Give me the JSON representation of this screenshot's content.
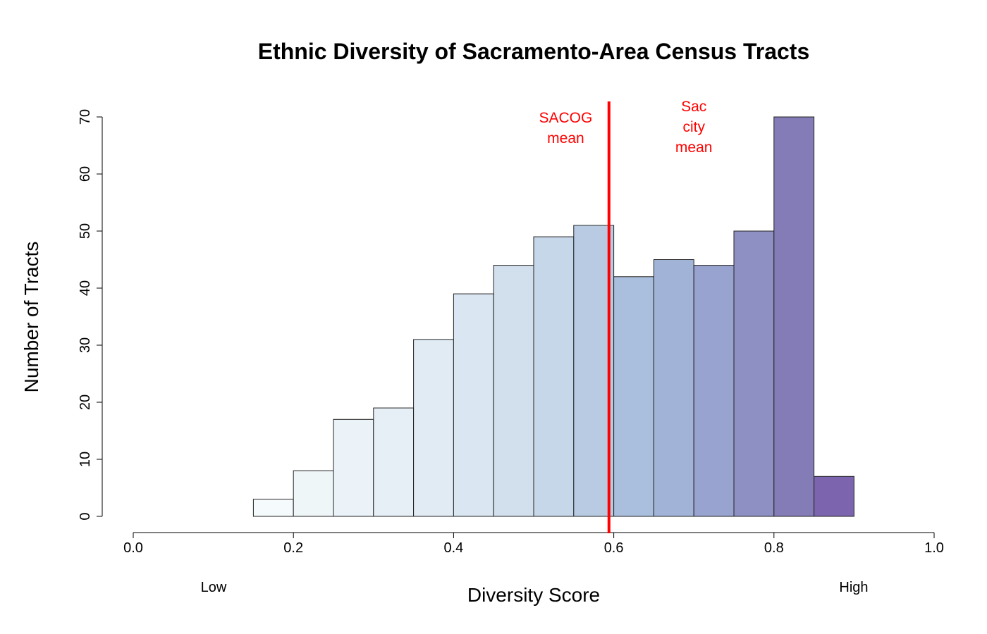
{
  "chart_data": {
    "type": "bar",
    "title": "Ethnic Diversity of Sacramento-Area Census Tracts",
    "xlabel": "Diversity Score",
    "ylabel": "Number of Tracts",
    "xlim": [
      0,
      1
    ],
    "ylim": [
      0,
      70
    ],
    "x_ticks": [
      "0.0",
      "0.2",
      "0.4",
      "0.6",
      "0.8",
      "1.0"
    ],
    "y_ticks": [
      "0",
      "10",
      "20",
      "30",
      "40",
      "50",
      "60",
      "70"
    ],
    "x_end_labels": {
      "low": "Low",
      "high": "High"
    },
    "bins": [
      {
        "x0": 0.15,
        "x1": 0.2,
        "count": 3,
        "color": "#f5fafc"
      },
      {
        "x0": 0.2,
        "x1": 0.25,
        "count": 8,
        "color": "#eff6f8"
      },
      {
        "x0": 0.25,
        "x1": 0.3,
        "count": 17,
        "color": "#ebf3f8"
      },
      {
        "x0": 0.3,
        "x1": 0.35,
        "count": 19,
        "color": "#e6eff6"
      },
      {
        "x0": 0.35,
        "x1": 0.4,
        "count": 31,
        "color": "#e1ebf4"
      },
      {
        "x0": 0.4,
        "x1": 0.45,
        "count": 39,
        "color": "#dae6f1"
      },
      {
        "x0": 0.45,
        "x1": 0.5,
        "count": 44,
        "color": "#d2e0ee"
      },
      {
        "x0": 0.5,
        "x1": 0.55,
        "count": 49,
        "color": "#c7d7ea"
      },
      {
        "x0": 0.55,
        "x1": 0.6,
        "count": 51,
        "color": "#b8cbe3"
      },
      {
        "x0": 0.6,
        "x1": 0.65,
        "count": 42,
        "color": "#aabfdd"
      },
      {
        "x0": 0.65,
        "x1": 0.7,
        "count": 45,
        "color": "#a1b4d7"
      },
      {
        "x0": 0.7,
        "x1": 0.75,
        "count": 44,
        "color": "#99a3cf"
      },
      {
        "x0": 0.75,
        "x1": 0.8,
        "count": 50,
        "color": "#8e90c3"
      },
      {
        "x0": 0.8,
        "x1": 0.85,
        "count": 70,
        "color": "#847cb7"
      },
      {
        "x0": 0.85,
        "x1": 0.9,
        "count": 7,
        "color": "#7c64ae"
      }
    ],
    "reference_lines": [
      {
        "x": 0.594,
        "color": "#ff0000"
      }
    ],
    "annotations": [
      {
        "lines": [
          "SACOG",
          "mean"
        ],
        "x": 0.54,
        "y": 69,
        "color": "#ff0000"
      },
      {
        "lines": [
          "Sac",
          "city",
          "mean"
        ],
        "x": 0.7,
        "y": 71,
        "color": "#ff0000"
      }
    ]
  }
}
